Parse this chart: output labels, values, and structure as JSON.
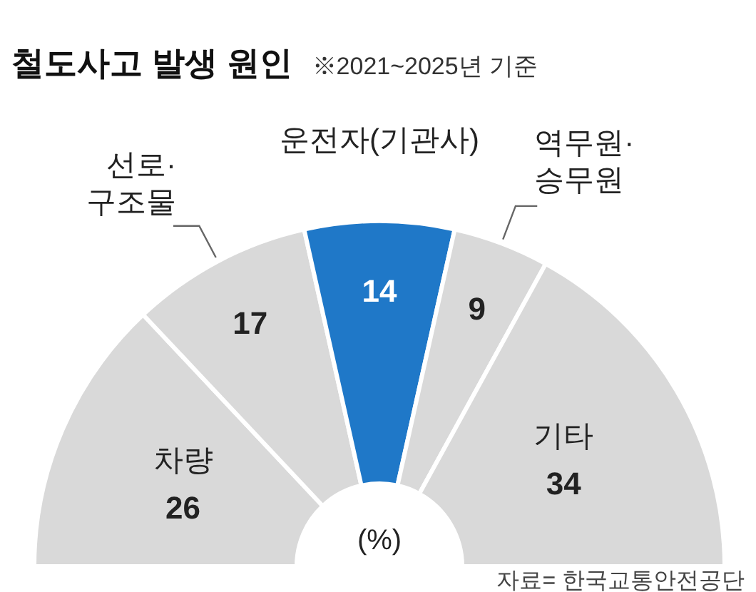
{
  "chart_data": {
    "type": "donut",
    "title": "철도사고 발생 원인",
    "subtitle": "※2021~2025년 기준",
    "categories": [
      "차량",
      "선로· 구조물",
      "운전자(기관사)",
      "역무원· 승무원",
      "기타"
    ],
    "values": [
      26,
      17,
      14,
      9,
      34
    ],
    "colors": [
      "#d9d9d9",
      "#d9d9d9",
      "#1f78c8",
      "#d9d9d9",
      "#d9d9d9"
    ],
    "data_labels": true,
    "annotations": [
      "(%)",
      "자료= 한국교통안전공단"
    ]
  }
}
